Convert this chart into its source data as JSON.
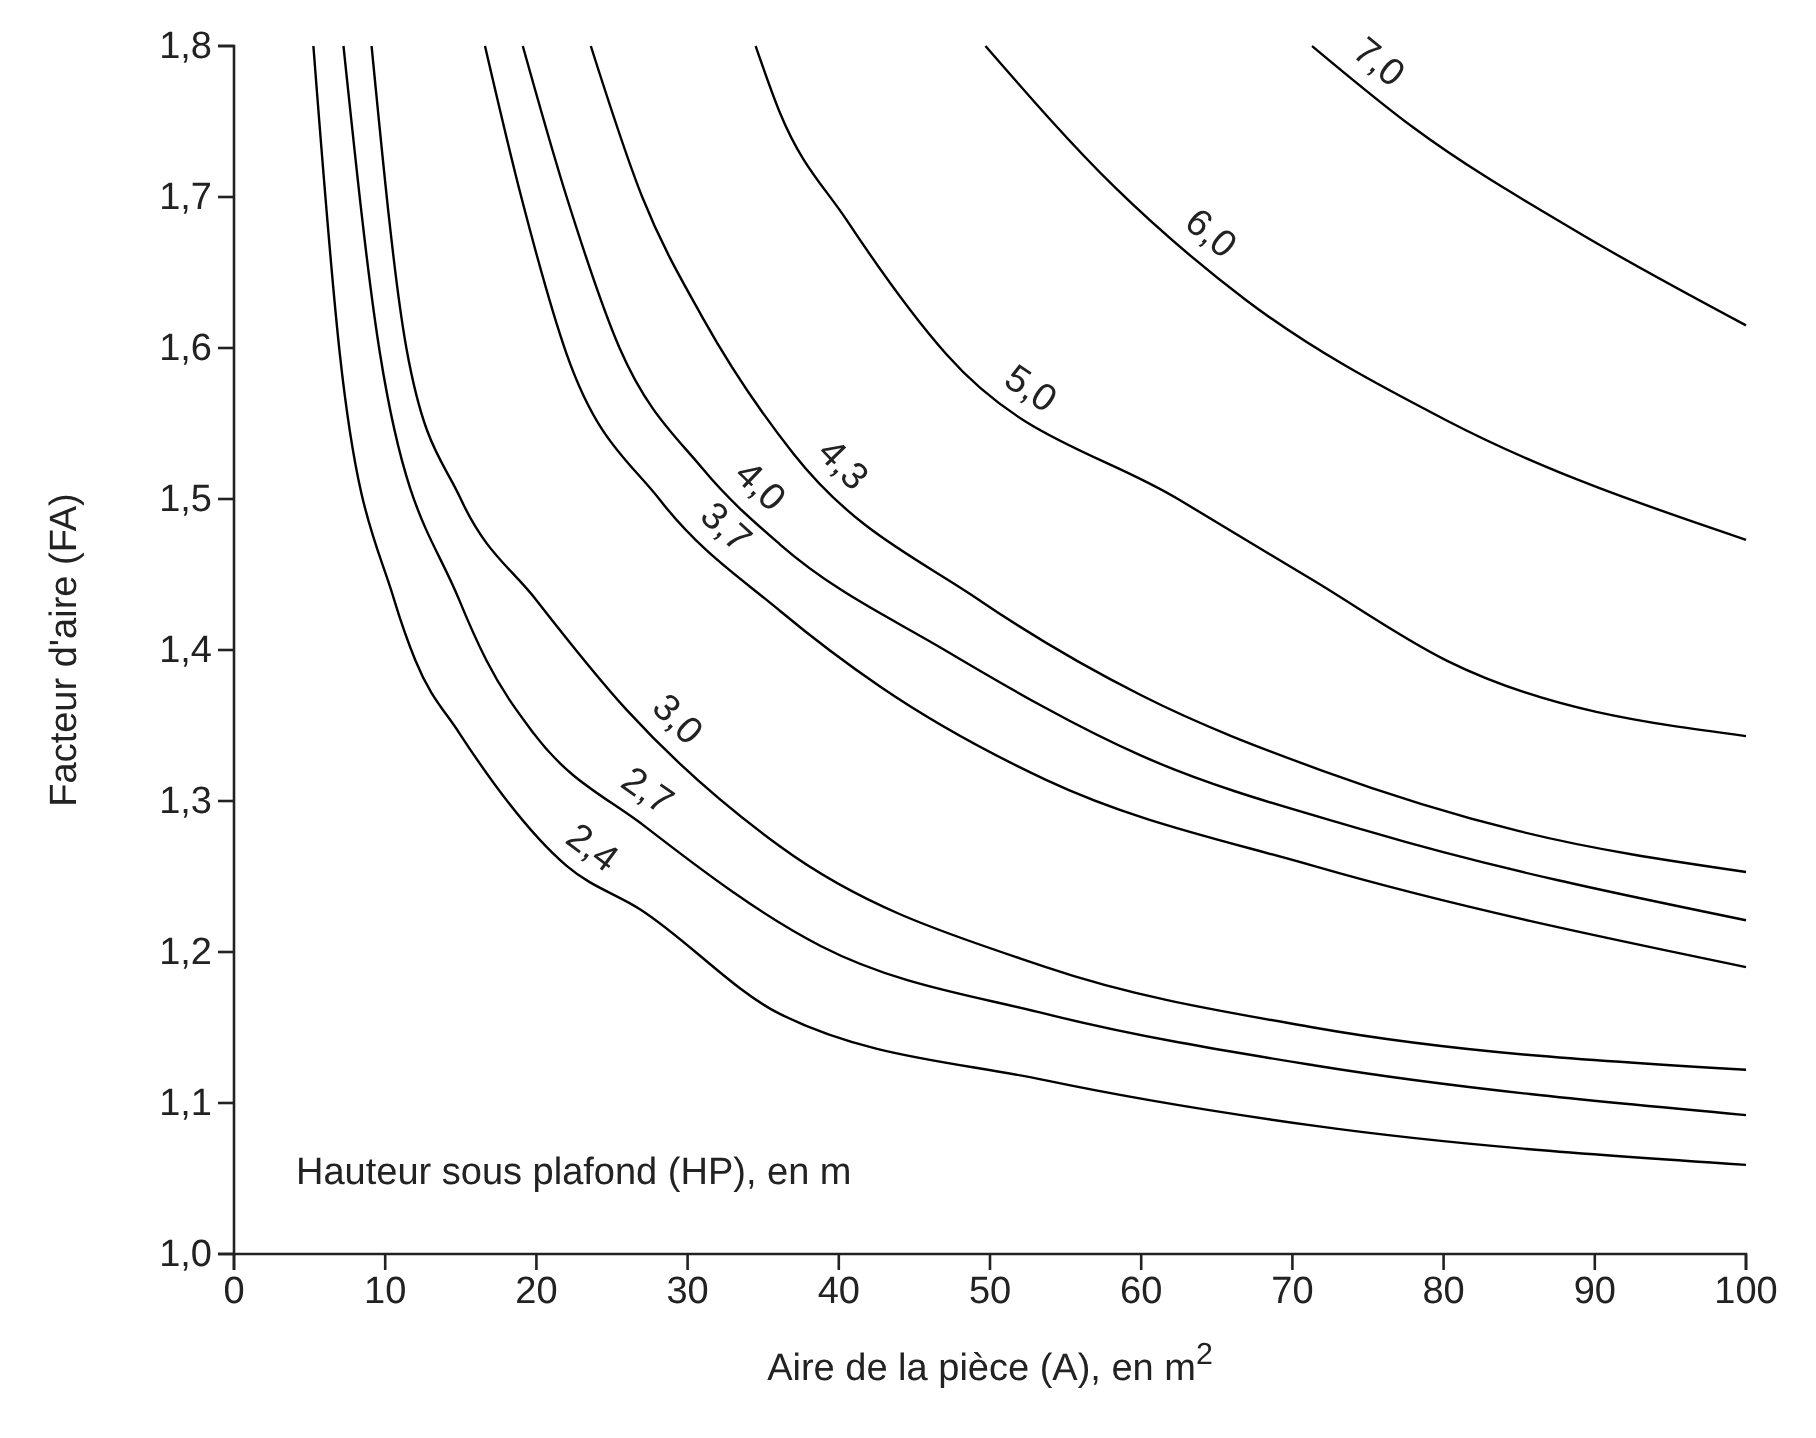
{
  "chart_data": {
    "type": "line",
    "xlabel": "Aire de la pièce (A), en m$^{2}$",
    "ylabel": "Facteur d'aire (FA)",
    "annotations": [
      "Hauteur sous plafond (HP), en m"
    ],
    "xlim": [
      0,
      100
    ],
    "xticks": [
      0,
      10,
      20,
      30,
      40,
      50,
      60,
      70,
      80,
      90,
      100
    ],
    "ylim": [
      1.0,
      1.8
    ],
    "yticks": [
      {
        "value": 1.0,
        "label": "1,0"
      },
      {
        "value": 1.1,
        "label": "1,1"
      },
      {
        "value": 1.2,
        "label": "1,2"
      },
      {
        "value": 1.3,
        "label": "1,3"
      },
      {
        "value": 1.4,
        "label": "1,4"
      },
      {
        "value": 1.5,
        "label": "1,5"
      },
      {
        "value": 1.6,
        "label": "1,6"
      },
      {
        "value": 1.7,
        "label": "1,7"
      },
      {
        "value": 1.8,
        "label": "1,8"
      }
    ],
    "grid": false,
    "legend": false,
    "marker": "none",
    "line_style": "solid",
    "series": [
      {
        "name": "2,4",
        "color": "#000000",
        "x": [
          5.25,
          7.0,
          10.6,
          12.0,
          14.9,
          22.0,
          26.9,
          36.1,
          53.7,
          71.4,
          100
        ],
        "values": [
          1.8,
          1.596,
          1.433,
          1.393,
          1.345,
          1.257,
          1.228,
          1.159,
          1.115,
          1.085,
          1.059
        ]
      },
      {
        "name": "2,7",
        "color": "#000000",
        "x": [
          7.24,
          9.66,
          14.9,
          16.7,
          19.8,
          27.2,
          38.8,
          53.7,
          71.4,
          100
        ],
        "values": [
          1.8,
          1.596,
          1.433,
          1.393,
          1.345,
          1.283,
          1.204,
          1.159,
          1.125,
          1.092
        ]
      },
      {
        "name": "3,0",
        "color": "#000000",
        "x": [
          9.1,
          11.4,
          15,
          20,
          26,
          36.1,
          53.7,
          71.4,
          100
        ],
        "values": [
          1.8,
          1.6,
          1.5,
          1.433,
          1.36,
          1.27,
          1.19,
          1.15,
          1.122
        ]
      },
      {
        "name": "3,7",
        "color": "#000000",
        "x": [
          16.6,
          19,
          22,
          28.2,
          36.1,
          42.7,
          53.7,
          71.4,
          100
        ],
        "values": [
          1.8,
          1.7,
          1.596,
          1.499,
          1.426,
          1.376,
          1.314,
          1.257,
          1.19
        ]
      },
      {
        "name": "4,0",
        "color": "#000000",
        "x": [
          19.1,
          22,
          25.5,
          31,
          36.1,
          47,
          60,
          75,
          100
        ],
        "values": [
          1.8,
          1.7,
          1.6,
          1.52,
          1.47,
          1.4,
          1.33,
          1.28,
          1.221
        ]
      },
      {
        "name": "4,3",
        "color": "#000000",
        "x": [
          23.6,
          27,
          31,
          37,
          49.3,
          60,
          72,
          85,
          100
        ],
        "values": [
          1.8,
          1.7,
          1.62,
          1.53,
          1.433,
          1.37,
          1.32,
          1.28,
          1.253
        ]
      },
      {
        "name": "5,0",
        "color": "#000000",
        "x": [
          34.5,
          36.1,
          40.5,
          47.1,
          62.6,
          71.4,
          80.2,
          100
        ],
        "values": [
          1.8,
          1.756,
          1.685,
          1.596,
          1.499,
          1.446,
          1.393,
          1.343
        ]
      },
      {
        "name": "6,0",
        "color": "#000000",
        "x": [
          49.7,
          58.2,
          66.9,
          80.2,
          100
        ],
        "values": [
          1.8,
          1.707,
          1.632,
          1.552,
          1.473
        ]
      },
      {
        "name": "7,0",
        "color": "#000000",
        "x": [
          71.3,
          78.0,
          89.0,
          100
        ],
        "values": [
          1.8,
          1.746,
          1.676,
          1.615
        ]
      }
    ]
  }
}
